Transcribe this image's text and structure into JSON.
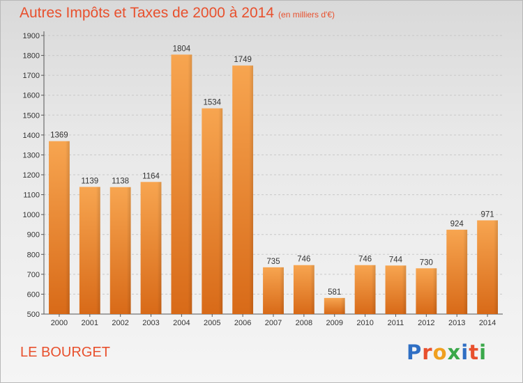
{
  "chart_data": {
    "type": "bar",
    "title": "Autres Impôts et Taxes de 2000 à 2014",
    "unit": "(en milliers d'€)",
    "categories": [
      "2000",
      "2001",
      "2002",
      "2003",
      "2004",
      "2005",
      "2006",
      "2007",
      "2008",
      "2009",
      "2010",
      "2011",
      "2012",
      "2013",
      "2014"
    ],
    "values": [
      1369,
      1139,
      1138,
      1164,
      1804,
      1534,
      1749,
      735,
      746,
      581,
      746,
      744,
      730,
      924,
      971
    ],
    "ylim": [
      500,
      1900
    ],
    "yticks": [
      500,
      600,
      700,
      800,
      900,
      1000,
      1100,
      1200,
      1300,
      1400,
      1500,
      1600,
      1700,
      1800,
      1900
    ],
    "grid": true,
    "bar_color": "#f0913a"
  },
  "commune": "LE BOURGET",
  "logo": {
    "letters": [
      "P",
      "r",
      "o",
      "x",
      "i",
      "t",
      "i"
    ],
    "colors": [
      "#2f6fc4",
      "#e8502d",
      "#f0a020",
      "#3aa84a",
      "#2f6fc4",
      "#e8502d",
      "#3aa84a"
    ]
  }
}
